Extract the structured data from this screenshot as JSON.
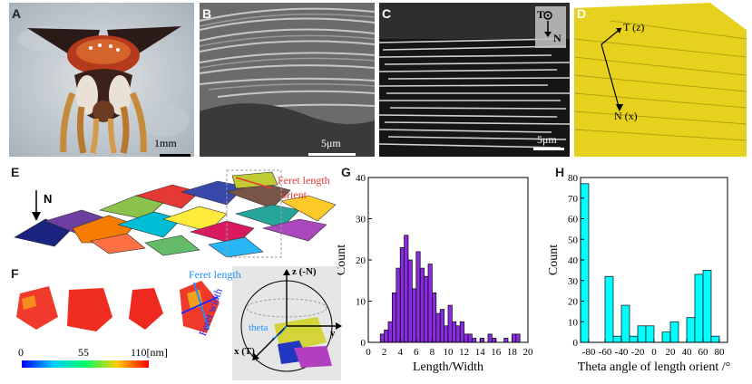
{
  "figure": {
    "panels": {
      "A": {
        "label": "A",
        "scale_bar": "1mm"
      },
      "B": {
        "label": "B",
        "scale_bar": "5μm"
      },
      "C": {
        "label": "C",
        "scale_bar": "5μm",
        "axis_T": "T",
        "axis_N": "N"
      },
      "D": {
        "label": "D",
        "axis_T": "T (z)",
        "axis_N": "N (x)"
      },
      "E": {
        "label": "E",
        "arrow_label": "N",
        "annotation_line1": "Feret length",
        "annotation_line2": "orient"
      },
      "F": {
        "label": "F",
        "feret_length": "Feret length",
        "feret_width": "Feret width",
        "colorbar_ticks": [
          "0",
          "55",
          "110[nm]"
        ],
        "axis_z": "z (-N)",
        "axis_y": "y",
        "axis_x": "x (T)",
        "theta": "theta"
      },
      "G": {
        "label": "G"
      },
      "H": {
        "label": "H"
      }
    }
  },
  "chart_data": [
    {
      "type": "bar",
      "panel": "G",
      "xlabel": "Length/Width",
      "ylabel": "Count",
      "xlim": [
        0,
        20
      ],
      "ylim": [
        0,
        40
      ],
      "xticks": [
        0,
        2,
        4,
        6,
        8,
        10,
        12,
        14,
        16,
        18,
        20
      ],
      "yticks": [
        0,
        10,
        20,
        30,
        40
      ],
      "bin_width": 0.5,
      "bin_starts": [
        1.5,
        2,
        2.5,
        3,
        3.5,
        4,
        4.5,
        5,
        5.5,
        6,
        6.5,
        7,
        7.5,
        8,
        8.5,
        9,
        9.5,
        10,
        10.5,
        11,
        11.5,
        12,
        12.5,
        13,
        13.5,
        14,
        14.5,
        15,
        15.5,
        16,
        16.5,
        17,
        17.5,
        18,
        18.5
      ],
      "values": [
        2,
        3,
        5,
        12,
        18,
        23,
        26,
        20,
        13,
        22,
        18,
        16,
        19,
        12,
        7,
        8,
        4,
        9,
        5,
        4,
        5,
        2,
        2,
        1,
        0,
        1,
        0,
        2,
        1,
        0,
        0,
        1,
        0,
        2,
        2
      ],
      "color": "#8a2be2"
    },
    {
      "type": "bar",
      "panel": "H",
      "xlabel": "Theta angle of length orient /°",
      "ylabel": "Count",
      "xlim": [
        -90,
        90
      ],
      "ylim": [
        0,
        80
      ],
      "xticks": [
        -80,
        -60,
        -40,
        -20,
        0,
        20,
        40,
        60,
        80
      ],
      "xtick_labels": [
        "-80",
        "-60",
        "-40",
        "-20",
        "0",
        "20",
        "40",
        "60",
        "80"
      ],
      "yticks": [
        0,
        10,
        20,
        30,
        40,
        50,
        60,
        70,
        80
      ],
      "bin_width": 10,
      "bin_starts": [
        -90,
        -80,
        -70,
        -60,
        -50,
        -40,
        -30,
        -20,
        -10,
        0,
        10,
        20,
        30,
        40,
        50,
        60,
        70
      ],
      "values": [
        77,
        0,
        0,
        32,
        3,
        18,
        3,
        8,
        8,
        0,
        5,
        10,
        0,
        12,
        33,
        35,
        3
      ],
      "color": "#00ffff"
    }
  ]
}
